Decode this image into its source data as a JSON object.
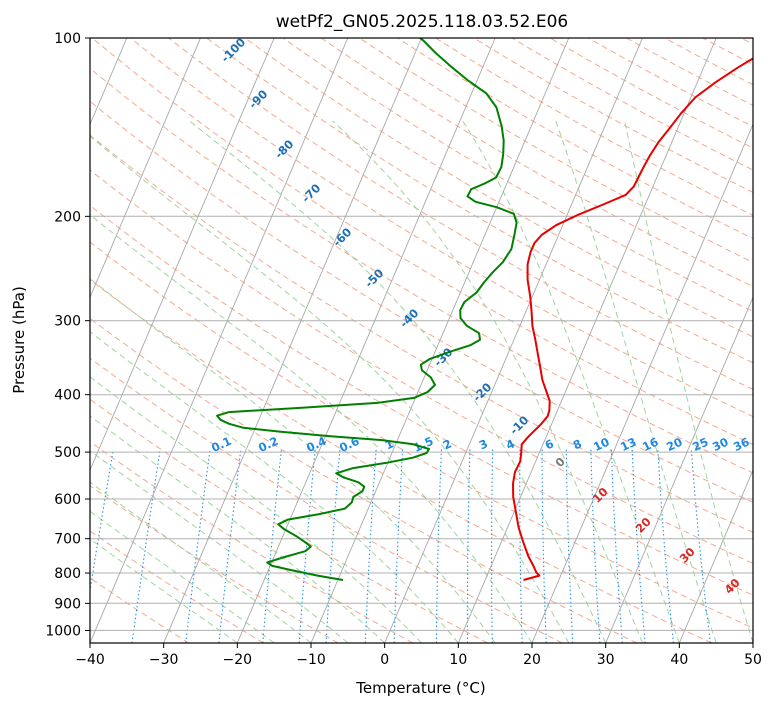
{
  "chart_data": {
    "type": "line",
    "subtype": "skew-t log-p diagram",
    "title": "wetPf2_GN05.2025.118.03.52.E06",
    "xlabel": "Temperature (°C)",
    "ylabel": "Pressure (hPa)",
    "xlim": [
      -40,
      50
    ],
    "ylim": [
      1050,
      100
    ],
    "y_scale": "log",
    "grid": true,
    "x_ticks": [
      "−40",
      "−30",
      "−20",
      "−10",
      "0",
      "10",
      "20",
      "30",
      "40",
      "50"
    ],
    "y_ticks": [
      "100",
      "200",
      "300",
      "400",
      "500",
      "600",
      "700",
      "800",
      "900",
      "1000"
    ],
    "series": [
      {
        "color": "#e60000",
        "role": "temperature",
        "points": [
          [
            15.2,
            822
          ],
          [
            17.1,
            808
          ],
          [
            16.5,
            798
          ],
          [
            15.8,
            780
          ],
          [
            14.5,
            750
          ],
          [
            13.0,
            710
          ],
          [
            11.5,
            670
          ],
          [
            10.2,
            630
          ],
          [
            9.0,
            595
          ],
          [
            8.2,
            565
          ],
          [
            7.8,
            540
          ],
          [
            7.9,
            518
          ],
          [
            7.5,
            500
          ],
          [
            7.1,
            485
          ],
          [
            7.6,
            470
          ],
          [
            8.6,
            448
          ],
          [
            9.0,
            435
          ],
          [
            8.9,
            425
          ],
          [
            8.4,
            410
          ],
          [
            7.4,
            395
          ],
          [
            6.2,
            378
          ],
          [
            5.2,
            360
          ],
          [
            4.1,
            342
          ],
          [
            2.9,
            323
          ],
          [
            1.7,
            306
          ],
          [
            0.8,
            290
          ],
          [
            -0.3,
            273
          ],
          [
            -1.6,
            256
          ],
          [
            -2.5,
            241
          ],
          [
            -2.8,
            230
          ],
          [
            -2.8,
            222
          ],
          [
            -2.3,
            215
          ],
          [
            -0.9,
            207
          ],
          [
            1.4,
            199
          ],
          [
            4.3,
            191
          ],
          [
            6.8,
            184
          ],
          [
            7.4,
            178
          ],
          [
            7.5,
            172
          ],
          [
            7.6,
            166
          ],
          [
            7.8,
            158
          ],
          [
            8.2,
            150
          ],
          [
            8.9,
            142
          ],
          [
            9.6,
            134
          ],
          [
            10.6,
            126
          ],
          [
            12.4,
            119
          ],
          [
            14.7,
            112
          ],
          [
            17.1,
            106
          ],
          [
            18.5,
            102
          ],
          [
            19.4,
            100
          ]
        ]
      },
      {
        "color": "#008000",
        "role": "dewpoint",
        "points": [
          [
            -9.3,
            822
          ],
          [
            -10.9,
            816
          ],
          [
            -13.0,
            808
          ],
          [
            -14.6,
            801
          ],
          [
            -16.9,
            791
          ],
          [
            -19.7,
            778
          ],
          [
            -20.6,
            768
          ],
          [
            -18.6,
            752
          ],
          [
            -16.1,
            735
          ],
          [
            -15.6,
            722
          ],
          [
            -16.6,
            710
          ],
          [
            -18.0,
            695
          ],
          [
            -20.2,
            675
          ],
          [
            -21.3,
            662
          ],
          [
            -20.3,
            650
          ],
          [
            -16.5,
            637
          ],
          [
            -13.2,
            623
          ],
          [
            -12.6,
            608
          ],
          [
            -12.7,
            595
          ],
          [
            -11.8,
            582
          ],
          [
            -11.8,
            572
          ],
          [
            -12.9,
            562
          ],
          [
            -15.1,
            552
          ],
          [
            -16.4,
            543
          ],
          [
            -14.4,
            532
          ],
          [
            -10.1,
            521
          ],
          [
            -6.9,
            511
          ],
          [
            -5.3,
            502
          ],
          [
            -5.2,
            494
          ],
          [
            -7.6,
            485
          ],
          [
            -12.3,
            477
          ],
          [
            -19.3,
            470
          ],
          [
            -26.3,
            462
          ],
          [
            -31.6,
            455
          ],
          [
            -33.8,
            448
          ],
          [
            -35.2,
            441
          ],
          [
            -35.9,
            434
          ],
          [
            -34.5,
            428
          ],
          [
            -25.1,
            421
          ],
          [
            -14.9,
            413
          ],
          [
            -10.2,
            405
          ],
          [
            -8.7,
            396
          ],
          [
            -8.1,
            385
          ],
          [
            -9.1,
            374
          ],
          [
            -10.7,
            364
          ],
          [
            -11.2,
            356
          ],
          [
            -10.3,
            348
          ],
          [
            -8.1,
            339
          ],
          [
            -5.6,
            330
          ],
          [
            -4.6,
            323
          ],
          [
            -5.1,
            315
          ],
          [
            -7.2,
            306
          ],
          [
            -8.5,
            297
          ],
          [
            -9.0,
            288
          ],
          [
            -8.9,
            279
          ],
          [
            -7.8,
            269
          ],
          [
            -7.4,
            259
          ],
          [
            -6.8,
            249
          ],
          [
            -6.0,
            239
          ],
          [
            -5.6,
            227
          ],
          [
            -6.0,
            215
          ],
          [
            -6.4,
            205
          ],
          [
            -7.3,
            198
          ],
          [
            -10.0,
            193
          ],
          [
            -13.2,
            189
          ],
          [
            -14.6,
            185
          ],
          [
            -14.5,
            180
          ],
          [
            -13.0,
            176
          ],
          [
            -11.8,
            172
          ],
          [
            -11.7,
            165
          ],
          [
            -12.2,
            157
          ],
          [
            -12.9,
            149
          ],
          [
            -14.0,
            141
          ],
          [
            -15.8,
            131
          ],
          [
            -18.0,
            124
          ],
          [
            -21.2,
            118
          ],
          [
            -24.2,
            112
          ],
          [
            -27.2,
            106
          ],
          [
            -29.6,
            101
          ],
          [
            -30.2,
            100
          ]
        ]
      }
    ],
    "dry_adiabat_labels": [
      "-100",
      "-90",
      "-80",
      "-70",
      "-60",
      "-50",
      "-40",
      "-30",
      "-20",
      "-10"
    ],
    "moist_adiabat_labels": [
      "0",
      "10",
      "20",
      "30",
      "40"
    ],
    "mixing_ratio_labels": [
      "0.1",
      "0.2",
      "0.4",
      "0.6",
      "1",
      "1.5",
      "2",
      "3",
      "4",
      "6",
      "8",
      "10",
      "13",
      "16",
      "20",
      "25",
      "30",
      "36"
    ],
    "colors": {
      "isobar": "#b0b0b0",
      "isotherm": "#a8a8a8",
      "dry_adiabat": "#f4a98f",
      "moist_adiabat": "#9fd49f",
      "mixing_ratio": "#2f8fe0",
      "surface_curve": "#d8b48c"
    }
  }
}
